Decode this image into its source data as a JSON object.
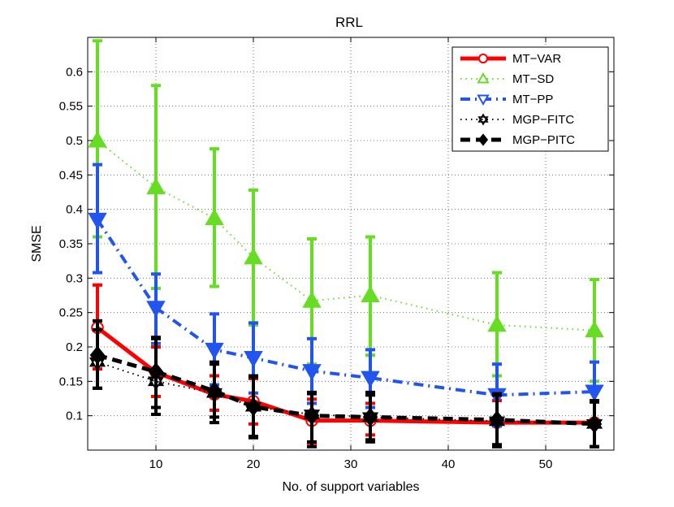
{
  "chart_data": {
    "type": "line",
    "title": "RRL",
    "xlabel": "No. of support variables",
    "ylabel": "SMSE",
    "xlim": [
      3,
      57
    ],
    "ylim": [
      0.05,
      0.65
    ],
    "x": [
      4,
      10,
      16,
      20,
      26,
      32,
      45,
      55
    ],
    "xticks": [
      10,
      20,
      30,
      40,
      50
    ],
    "yticks": [
      0.1,
      0.15,
      0.2,
      0.25,
      0.3,
      0.35,
      0.4,
      0.45,
      0.5,
      0.55,
      0.6
    ],
    "grid": true,
    "legend_position": "top-right",
    "series": [
      {
        "name": "MT−VAR",
        "color": "#ff0000",
        "style": "solid",
        "marker": "circle",
        "values": [
          0.228,
          0.163,
          0.131,
          0.121,
          0.093,
          0.093,
          0.09,
          0.09
        ],
        "err_lower": [
          0.168,
          0.128,
          0.108,
          0.088,
          0.06,
          0.072,
          0.055,
          0.055
        ],
        "err_upper": [
          0.29,
          0.2,
          0.158,
          0.154,
          0.124,
          0.118,
          0.122,
          0.12
        ]
      },
      {
        "name": "MT−SD",
        "color": "#66dd22",
        "style": "dotted",
        "marker": "triangle-up",
        "values": [
          0.5,
          0.432,
          0.387,
          0.33,
          0.267,
          0.275,
          0.232,
          0.224
        ],
        "err_lower": [
          0.36,
          0.285,
          0.288,
          0.232,
          0.175,
          0.188,
          0.158,
          0.15
        ],
        "err_upper": [
          0.645,
          0.58,
          0.488,
          0.428,
          0.357,
          0.36,
          0.308,
          0.298
        ]
      },
      {
        "name": "MT−PP",
        "color": "#2255ee",
        "style": "dashdot",
        "marker": "triangle-down",
        "values": [
          0.385,
          0.257,
          0.196,
          0.184,
          0.165,
          0.155,
          0.13,
          0.135
        ],
        "err_lower": [
          0.308,
          0.205,
          0.145,
          0.133,
          0.118,
          0.112,
          0.085,
          0.09
        ],
        "err_upper": [
          0.465,
          0.306,
          0.248,
          0.235,
          0.212,
          0.196,
          0.175,
          0.178
        ]
      },
      {
        "name": "MGP−FITC",
        "color": "#000000",
        "style": "dotted",
        "marker": "hexagram",
        "values": [
          0.178,
          0.15,
          0.133,
          0.113,
          0.102,
          0.098,
          0.092,
          0.088
        ],
        "err_lower": [
          0.14,
          0.102,
          0.09,
          0.068,
          0.055,
          0.065,
          0.055,
          0.055
        ],
        "err_upper": [
          0.225,
          0.212,
          0.178,
          0.158,
          0.134,
          0.134,
          0.13,
          0.122
        ]
      },
      {
        "name": "MGP−PITC",
        "color": "#000000",
        "style": "dashed",
        "marker": "diamond",
        "values": [
          0.188,
          0.164,
          0.136,
          0.113,
          0.1,
          0.098,
          0.094,
          0.088
        ],
        "err_lower": [
          0.14,
          0.112,
          0.098,
          0.07,
          0.062,
          0.062,
          0.058,
          0.055
        ],
        "err_upper": [
          0.238,
          0.214,
          0.175,
          0.156,
          0.132,
          0.13,
          0.132,
          0.12
        ]
      }
    ]
  }
}
